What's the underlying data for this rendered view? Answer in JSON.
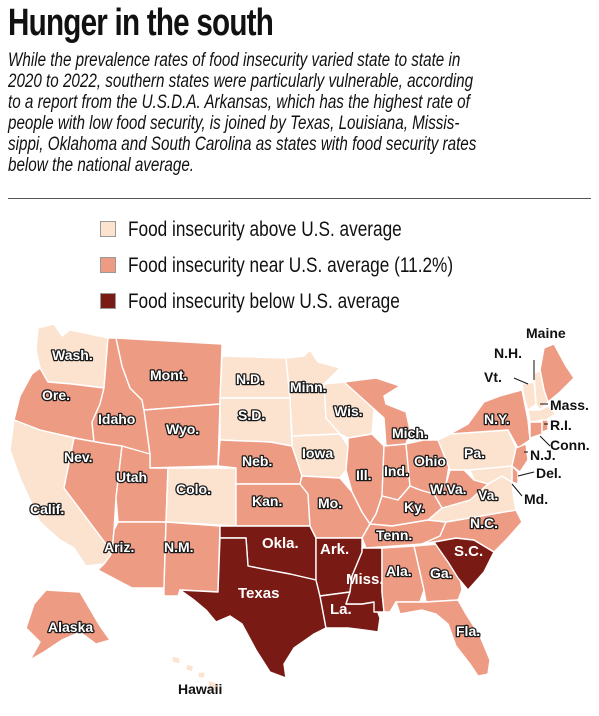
{
  "title": "Hunger in the south",
  "intro_lines": [
    "While the prevalence rates of food insecurity varied state to state in",
    "2020 to 2022, southern states were particularly vulnerable, according",
    "to a report from the U.S.D.A. Arkansas, which has the highest rate of",
    "people with low food security, is joined by Texas, Louisiana, Missis-",
    "sippi, Oklahoma and South Carolina as states with food security rates",
    "below the national average."
  ],
  "legend": [
    {
      "label": "Food insecurity above U.S. average",
      "color": "#fbe3d0"
    },
    {
      "label": "Food insecurity near U.S. average (11.2%)",
      "color": "#ee9b84"
    },
    {
      "label": "Food insecurity below U.S. average",
      "color": "#7a1a14"
    }
  ],
  "colors": {
    "above": "#fbe3d0",
    "near": "#ee9b84",
    "below": "#7a1a14"
  },
  "states": {
    "wash": {
      "label": "Wash.",
      "category": "above"
    },
    "ore": {
      "label": "Ore.",
      "category": "near"
    },
    "calif": {
      "label": "Calif.",
      "category": "above"
    },
    "idaho": {
      "label": "Idaho",
      "category": "near"
    },
    "nev": {
      "label": "Nev.",
      "category": "near"
    },
    "mont": {
      "label": "Mont.",
      "category": "near"
    },
    "wyo": {
      "label": "Wyo.",
      "category": "near"
    },
    "utah": {
      "label": "Utah",
      "category": "near"
    },
    "colo": {
      "label": "Colo.",
      "category": "above"
    },
    "ariz": {
      "label": "Ariz.",
      "category": "near"
    },
    "nm": {
      "label": "N.M.",
      "category": "near"
    },
    "nd": {
      "label": "N.D.",
      "category": "above"
    },
    "sd": {
      "label": "S.D.",
      "category": "above"
    },
    "neb": {
      "label": "Neb.",
      "category": "near"
    },
    "kan": {
      "label": "Kan.",
      "category": "near"
    },
    "okla": {
      "label": "Okla.",
      "category": "below"
    },
    "texas": {
      "label": "Texas",
      "category": "below"
    },
    "minn": {
      "label": "Minn.",
      "category": "above"
    },
    "iowa": {
      "label": "Iowa",
      "category": "above"
    },
    "mo": {
      "label": "Mo.",
      "category": "near"
    },
    "ark": {
      "label": "Ark.",
      "category": "below"
    },
    "la": {
      "label": "La.",
      "category": "below"
    },
    "wis": {
      "label": "Wis.",
      "category": "above"
    },
    "ill": {
      "label": "Ill.",
      "category": "near"
    },
    "mich": {
      "label": "Mich.",
      "category": "near"
    },
    "ind": {
      "label": "Ind.",
      "category": "near"
    },
    "ohio": {
      "label": "Ohio",
      "category": "near"
    },
    "ky": {
      "label": "Ky.",
      "category": "near"
    },
    "tenn": {
      "label": "Tenn.",
      "category": "near"
    },
    "miss": {
      "label": "Miss.",
      "category": "below"
    },
    "ala": {
      "label": "Ala.",
      "category": "near"
    },
    "ga": {
      "label": "Ga.",
      "category": "near"
    },
    "fla": {
      "label": "Fla.",
      "category": "near"
    },
    "sc": {
      "label": "S.C.",
      "category": "below"
    },
    "nc": {
      "label": "N.C.",
      "category": "near"
    },
    "va": {
      "label": "Va.",
      "category": "above"
    },
    "wva": {
      "label": "W.Va.",
      "category": "near"
    },
    "pa": {
      "label": "Pa.",
      "category": "above"
    },
    "ny": {
      "label": "N.Y.",
      "category": "near"
    },
    "maine": {
      "label": "Maine",
      "category": "near"
    },
    "nh": {
      "label": "N.H.",
      "category": "above"
    },
    "vt": {
      "label": "Vt.",
      "category": "above"
    },
    "mass": {
      "label": "Mass.",
      "category": "above"
    },
    "ri": {
      "label": "R.I.",
      "category": "near"
    },
    "conn": {
      "label": "Conn.",
      "category": "near"
    },
    "nj": {
      "label": "N.J.",
      "category": "near"
    },
    "del": {
      "label": "Del.",
      "category": "near"
    },
    "md": {
      "label": "Md.",
      "category": "above"
    },
    "alaska": {
      "label": "Alaska",
      "category": "near"
    },
    "hawaii": {
      "label": "Hawaii",
      "category": "above"
    }
  }
}
